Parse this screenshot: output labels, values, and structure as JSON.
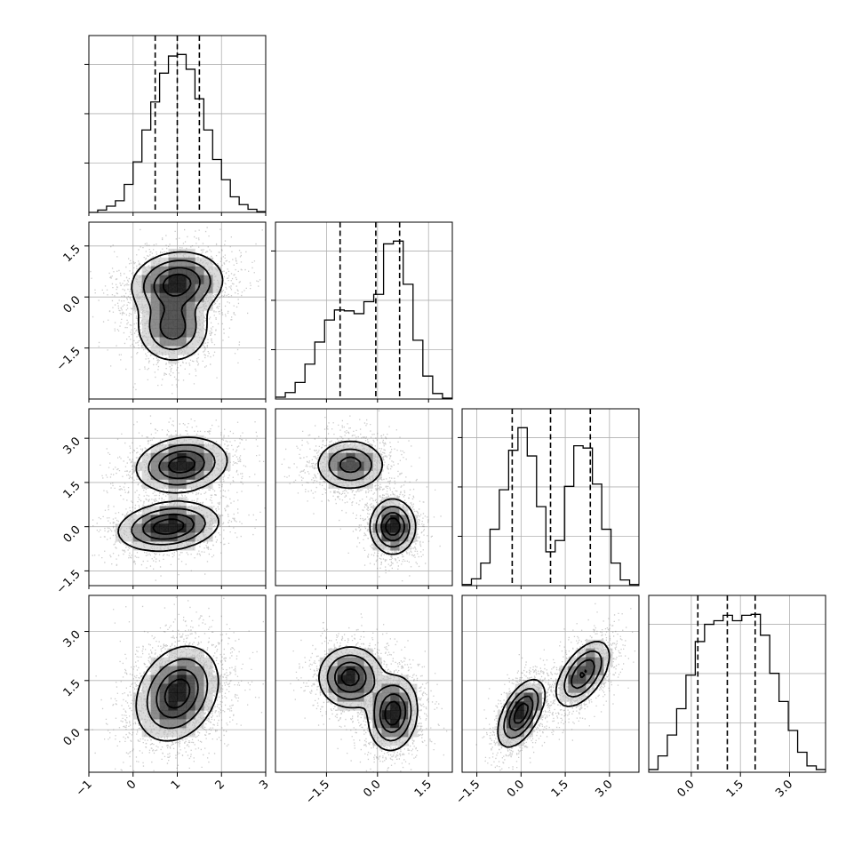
{
  "chart_data": {
    "type": "corner",
    "title": "",
    "parameters": [
      {
        "index": 0,
        "range": [
          -1,
          3
        ],
        "ticks": [
          -1,
          0,
          1,
          2,
          3
        ],
        "tick_labels": [
          "−1",
          "0",
          "1",
          "2",
          "3"
        ],
        "quantiles": [
          0.5,
          1.0,
          1.5
        ],
        "hist": {
          "min": -1,
          "max": 3,
          "counts": [
            0,
            0.3,
            0.8,
            1.5,
            3.6,
            6.5,
            10.6,
            14.2,
            17.9,
            20.1,
            20.3,
            18.4,
            14.6,
            10.6,
            6.8,
            4.2,
            2.0,
            1.0,
            0.4,
            0.1
          ]
        }
      },
      {
        "index": 1,
        "range": [
          -3,
          2.2
        ],
        "ticks": [
          -1.5,
          0.0,
          1.5
        ],
        "tick_labels": [
          "−1.5",
          "0.0",
          "1.5"
        ],
        "quantiles": [
          -1.1,
          -0.05,
          0.65
        ],
        "hist": {
          "min": -3,
          "max": 2.2,
          "counts": [
            0.2,
            0.7,
            1.8,
            3.8,
            6.2,
            8.6,
            9.7,
            9.6,
            9.3,
            10.6,
            11.4,
            16.9,
            17.2,
            12.5,
            6.4,
            2.5,
            0.6,
            0.1
          ]
        }
      },
      {
        "index": 2,
        "range": [
          -2,
          4
        ],
        "ticks": [
          -1.5,
          0.0,
          1.5,
          3.0
        ],
        "tick_labels": [
          "−1.5",
          "0.0",
          "1.5",
          "3.0"
        ],
        "quantiles": [
          -0.3,
          1.0,
          2.35
        ],
        "hist": {
          "min": -2,
          "max": 4,
          "counts": [
            0.1,
            0.6,
            2.0,
            5.0,
            8.5,
            12.0,
            14.0,
            11.5,
            7.0,
            3.0,
            4.0,
            8.8,
            12.4,
            12.2,
            9.0,
            5.0,
            2.0,
            0.5,
            0.1
          ]
        }
      },
      {
        "index": 3,
        "range": [
          -1.3,
          4.1
        ],
        "ticks": [
          0.0,
          1.5,
          3.0
        ],
        "tick_labels": [
          "0.0",
          "1.5",
          "3.0"
        ],
        "quantiles": [
          0.2,
          1.1,
          1.95
        ],
        "hist": {
          "min": -1.3,
          "max": 4.1,
          "counts": [
            0.3,
            1.8,
            4.1,
            7.0,
            10.7,
            14.4,
            16.3,
            16.7,
            17.3,
            16.7,
            17.3,
            17.4,
            15.1,
            10.9,
            7.8,
            4.6,
            2.2,
            0.7,
            0.3
          ]
        }
      }
    ],
    "pairs": [
      {
        "x": 0,
        "y": 1,
        "modes": [
          {
            "mx": 1.0,
            "my": 0.4,
            "sx": 0.5,
            "sy": 0.45,
            "rho": 0.1,
            "w": 0.6
          },
          {
            "mx": 0.9,
            "my": -0.9,
            "sx": 0.4,
            "sy": 0.5,
            "rho": 0.0,
            "w": 0.4
          }
        ]
      },
      {
        "x": 0,
        "y": 2,
        "modes": [
          {
            "mx": 1.1,
            "my": 2.1,
            "sx": 0.5,
            "sy": 0.45,
            "rho": 0.15,
            "w": 0.5
          },
          {
            "mx": 0.8,
            "my": 0.0,
            "sx": 0.55,
            "sy": 0.4,
            "rho": 0.2,
            "w": 0.5
          }
        ]
      },
      {
        "x": 1,
        "y": 2,
        "modes": [
          {
            "mx": -0.8,
            "my": 2.1,
            "sx": 0.5,
            "sy": 0.42,
            "rho": 0.0,
            "w": 0.5
          },
          {
            "mx": 0.45,
            "my": 0.0,
            "sx": 0.32,
            "sy": 0.45,
            "rho": 0.0,
            "w": 0.5
          }
        ]
      },
      {
        "x": 0,
        "y": 3,
        "modes": [
          {
            "mx": 1.0,
            "my": 1.1,
            "sx": 0.45,
            "sy": 0.7,
            "rho": 0.25,
            "w": 1.0
          }
        ]
      },
      {
        "x": 1,
        "y": 3,
        "modes": [
          {
            "mx": -0.8,
            "my": 1.6,
            "sx": 0.45,
            "sy": 0.45,
            "rho": 0.0,
            "w": 0.5
          },
          {
            "mx": 0.45,
            "my": 0.5,
            "sx": 0.35,
            "sy": 0.55,
            "rho": 0.1,
            "w": 0.5
          }
        ]
      },
      {
        "x": 2,
        "y": 3,
        "modes": [
          {
            "mx": 0.0,
            "my": 0.5,
            "sx": 0.38,
            "sy": 0.5,
            "rho": 0.55,
            "w": 0.5
          },
          {
            "mx": 2.1,
            "my": 1.7,
            "sx": 0.45,
            "sy": 0.5,
            "rho": 0.55,
            "w": 0.5
          }
        ]
      }
    ],
    "density_levels": [
      0.12,
      0.32,
      0.58,
      0.82
    ],
    "colors": {
      "line": "#000000",
      "points": "#6b6b6b",
      "grid": "#b0b0b0",
      "background": "#ffffff"
    }
  }
}
